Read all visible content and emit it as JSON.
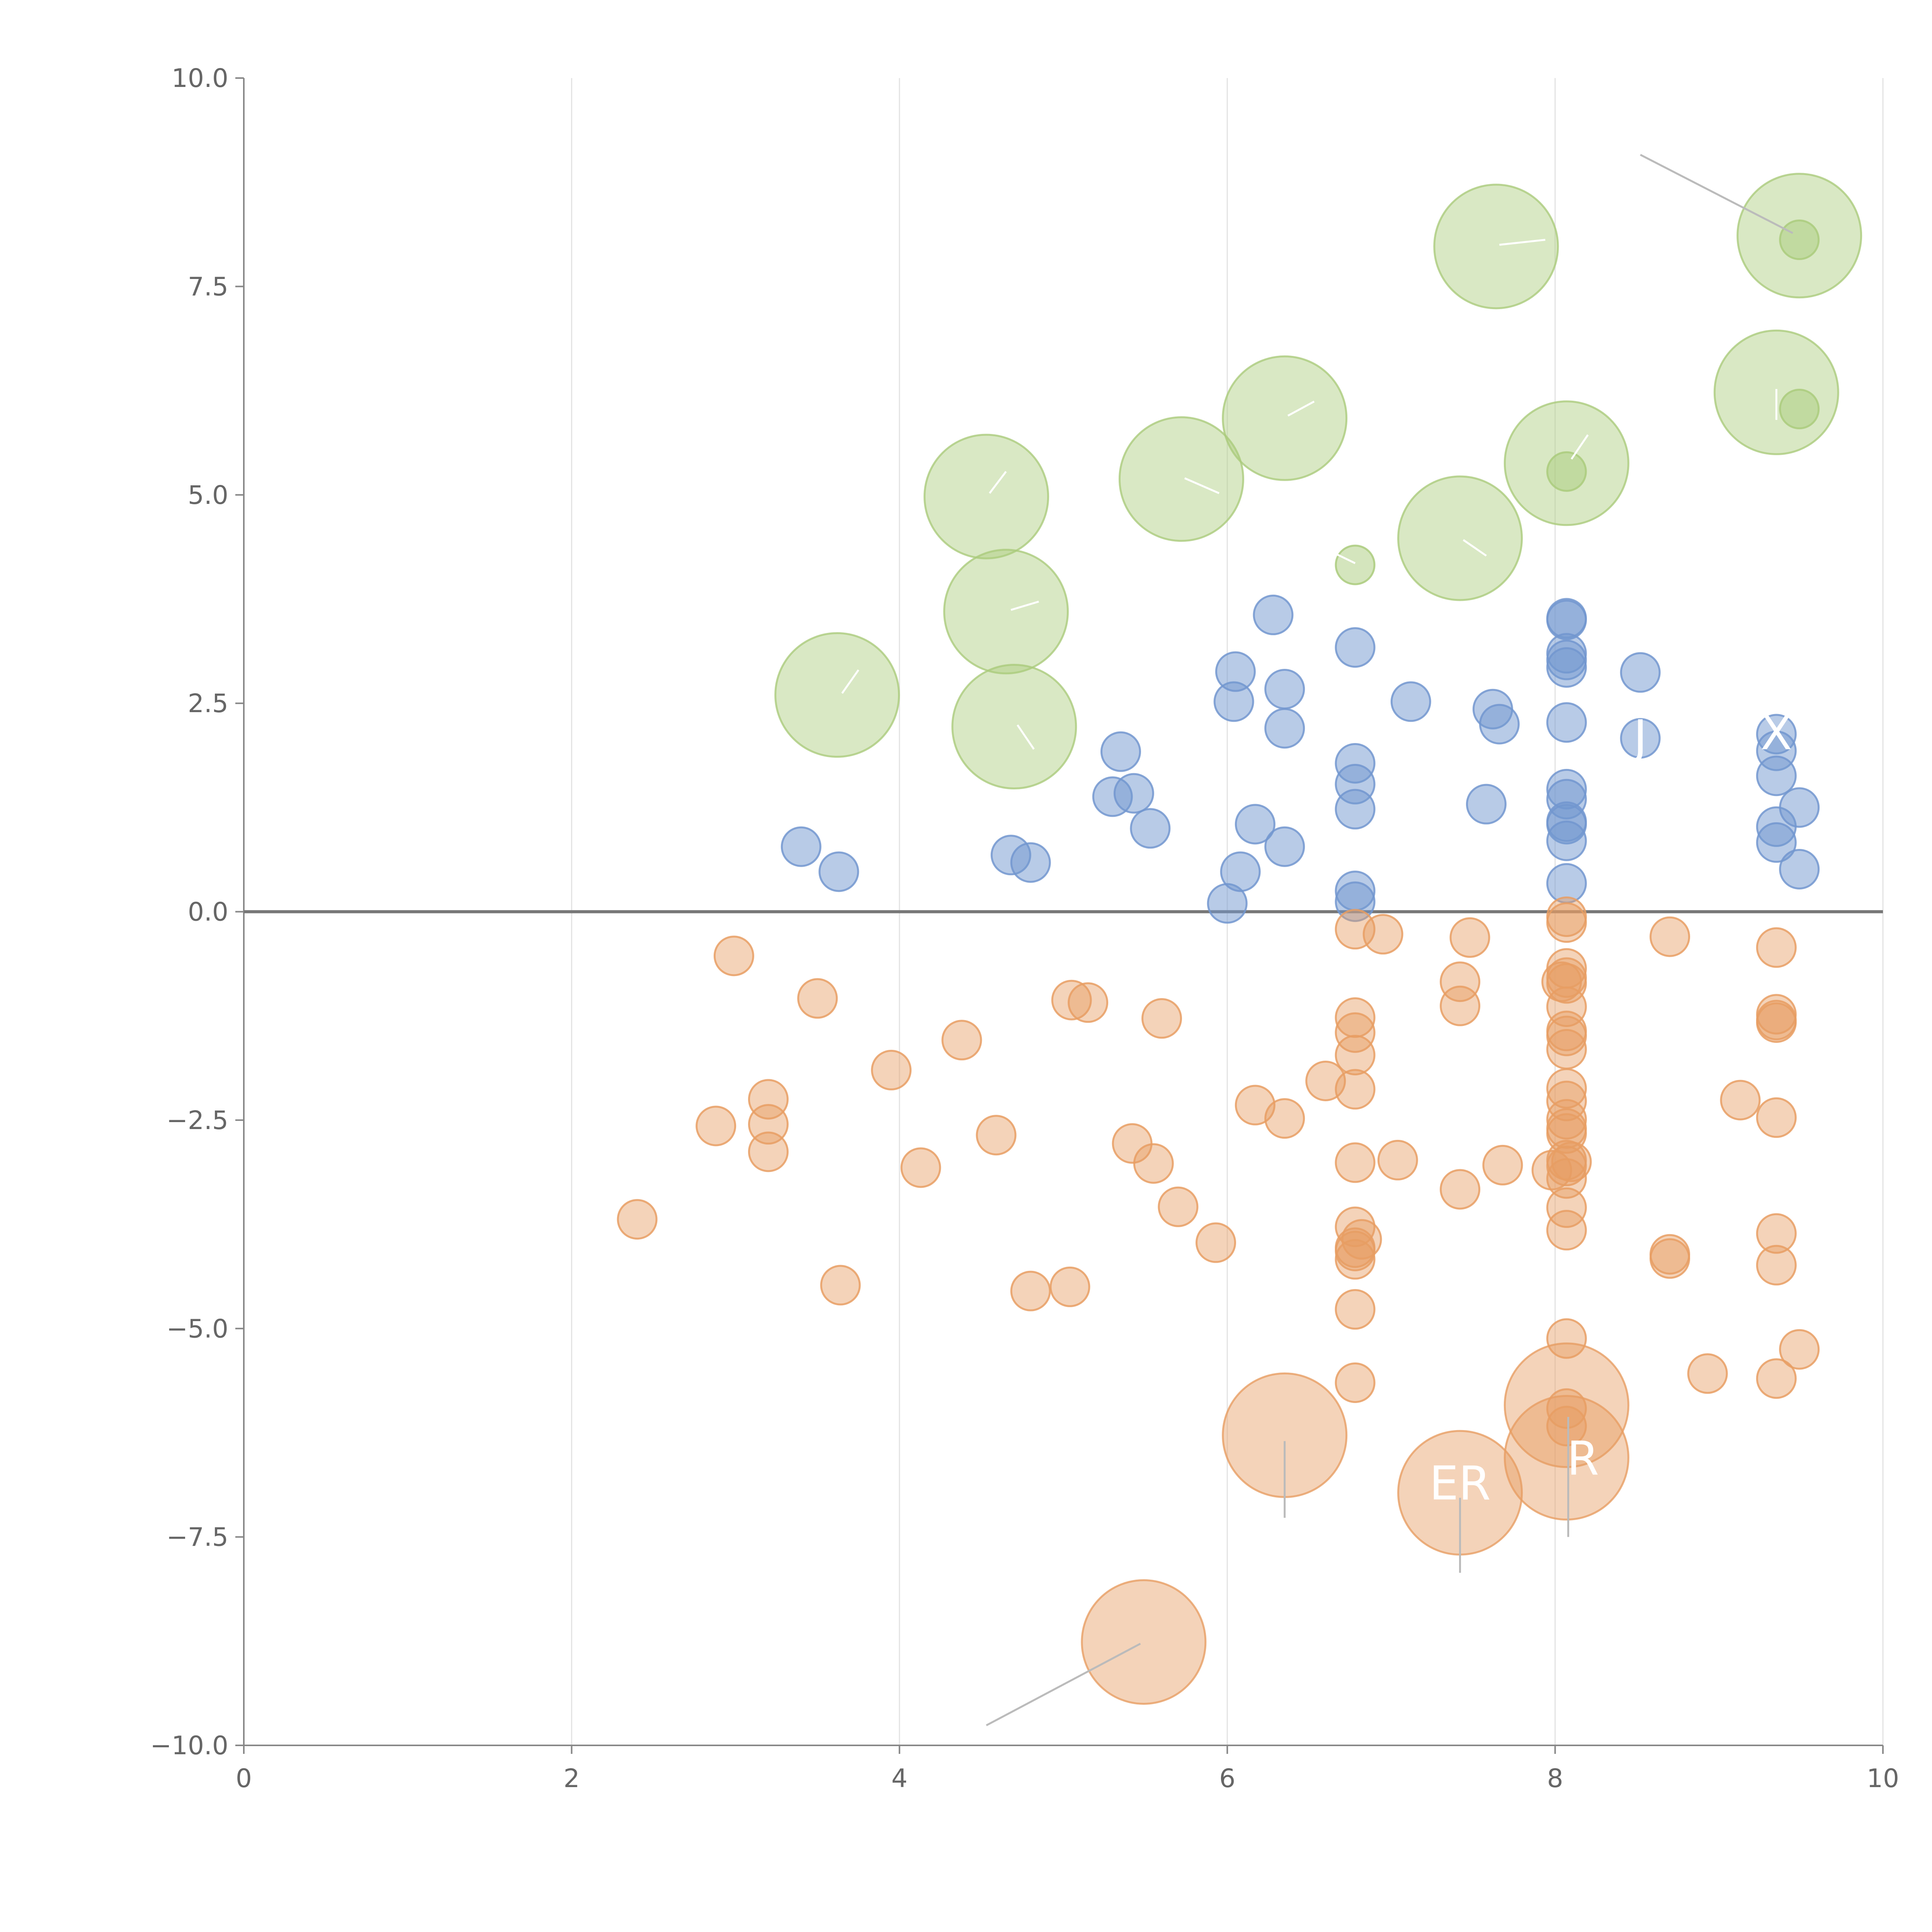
{
  "chart_data": {
    "type": "scatter",
    "title": "",
    "xlabel": "",
    "ylabel": "",
    "xlim": [
      0,
      10
    ],
    "ylim": [
      -10,
      10
    ],
    "x_ticks": [
      0,
      2,
      4,
      6,
      8,
      10
    ],
    "y_ticks": [
      -10.0,
      -7.5,
      -5.0,
      -2.5,
      0.0,
      2.5,
      5.0,
      7.5,
      10.0
    ],
    "x_tick_labels": [
      "0",
      "2",
      "4",
      "6",
      "8",
      "10"
    ],
    "y_tick_labels": [
      "−10.0",
      "−7.5",
      "−5.0",
      "−2.5",
      "0.0",
      "2.5",
      "5.0",
      "7.5",
      "10.0"
    ],
    "grid": "vertical",
    "zero_line": true,
    "colors": {
      "blue": "#7297cf",
      "orange": "#e79d63",
      "green": "#aacb7c"
    },
    "series": [
      {
        "color": "#7297cf",
        "opacity": 0.5,
        "points": [
          [
            3.4,
            0.78
          ],
          [
            3.63,
            0.48
          ],
          [
            4.68,
            0.68
          ],
          [
            4.8,
            0.59
          ],
          [
            5.3,
            1.38
          ],
          [
            5.35,
            1.92
          ],
          [
            5.43,
            1.42
          ],
          [
            5.53,
            1.0
          ],
          [
            6.0,
            0.1
          ],
          [
            6.04,
            2.52
          ],
          [
            6.05,
            2.88
          ],
          [
            6.08,
            0.48
          ],
          [
            6.17,
            1.05
          ],
          [
            6.28,
            3.56
          ],
          [
            6.35,
            2.67
          ],
          [
            6.35,
            2.2
          ],
          [
            6.35,
            0.78
          ],
          [
            6.78,
            3.17
          ],
          [
            6.78,
            1.78
          ],
          [
            6.78,
            1.53
          ],
          [
            6.78,
            1.23
          ],
          [
            6.78,
            0.25
          ],
          [
            6.78,
            0.12
          ],
          [
            7.12,
            2.52
          ],
          [
            7.58,
            1.29
          ],
          [
            7.62,
            2.43
          ],
          [
            7.66,
            2.25
          ],
          [
            8.07,
            3.52
          ],
          [
            8.07,
            3.5
          ],
          [
            8.07,
            3.1
          ],
          [
            8.07,
            3.02
          ],
          [
            8.07,
            2.93
          ],
          [
            8.07,
            2.27
          ],
          [
            8.07,
            1.47
          ],
          [
            8.07,
            1.35
          ],
          [
            8.07,
            1.08
          ],
          [
            8.07,
            1.05
          ],
          [
            8.07,
            0.85
          ],
          [
            8.07,
            0.34
          ],
          [
            8.52,
            2.87
          ],
          [
            8.52,
            2.08
          ],
          [
            9.35,
            2.13
          ],
          [
            9.35,
            1.93
          ],
          [
            9.35,
            1.63
          ],
          [
            9.35,
            1.02
          ],
          [
            9.35,
            0.83
          ],
          [
            9.49,
            1.25
          ],
          [
            9.49,
            0.51
          ]
        ]
      },
      {
        "color": "#e79d63",
        "opacity": 0.45,
        "points": [
          [
            2.4,
            -3.69
          ],
          [
            2.88,
            -2.57
          ],
          [
            2.99,
            -0.53
          ],
          [
            3.2,
            -2.25
          ],
          [
            3.2,
            -2.55
          ],
          [
            3.2,
            -2.88
          ],
          [
            3.5,
            -1.04
          ],
          [
            3.64,
            -4.48
          ],
          [
            3.95,
            -1.9
          ],
          [
            4.13,
            -3.07
          ],
          [
            4.38,
            -1.54
          ],
          [
            4.59,
            -2.68
          ],
          [
            4.8,
            -4.55
          ],
          [
            5.04,
            -4.5
          ],
          [
            5.05,
            -1.06
          ],
          [
            5.15,
            -1.09
          ],
          [
            5.42,
            -2.78
          ],
          [
            5.55,
            -3.02
          ],
          [
            5.6,
            -1.28
          ],
          [
            5.7,
            -3.54
          ],
          [
            5.93,
            -3.97
          ],
          [
            6.17,
            -2.32
          ],
          [
            6.35,
            -2.48
          ],
          [
            6.6,
            -2.03
          ],
          [
            6.78,
            -0.21
          ],
          [
            6.78,
            -1.27
          ],
          [
            6.78,
            -1.45
          ],
          [
            6.78,
            -1.72
          ],
          [
            6.78,
            -2.13
          ],
          [
            6.78,
            -3.01
          ],
          [
            6.78,
            -3.78
          ],
          [
            6.78,
            -4.03
          ],
          [
            6.78,
            -4.07
          ],
          [
            6.78,
            -4.17
          ],
          [
            6.78,
            -4.77
          ],
          [
            6.78,
            -5.65
          ],
          [
            6.82,
            -3.93
          ],
          [
            6.95,
            -0.27
          ],
          [
            7.04,
            -2.98
          ],
          [
            7.42,
            -0.84
          ],
          [
            7.42,
            -1.13
          ],
          [
            7.42,
            -3.33
          ],
          [
            7.48,
            -0.31
          ],
          [
            7.68,
            -3.04
          ],
          [
            7.98,
            -3.1
          ],
          [
            8.04,
            -0.84
          ],
          [
            8.07,
            -0.06
          ],
          [
            8.07,
            -0.13
          ],
          [
            8.07,
            -0.68
          ],
          [
            8.07,
            -0.79
          ],
          [
            8.07,
            -0.86
          ],
          [
            8.07,
            -1.14
          ],
          [
            8.07,
            -1.43
          ],
          [
            8.07,
            -1.49
          ],
          [
            8.07,
            -1.65
          ],
          [
            8.07,
            -2.12
          ],
          [
            8.07,
            -2.27
          ],
          [
            8.07,
            -2.49
          ],
          [
            8.07,
            -2.6
          ],
          [
            8.07,
            -2.66
          ],
          [
            8.07,
            -2.98
          ],
          [
            8.07,
            -3.05
          ],
          [
            8.07,
            -3.2
          ],
          [
            8.07,
            -3.55
          ],
          [
            8.07,
            -3.82
          ],
          [
            8.07,
            -5.12
          ],
          [
            8.07,
            -5.96
          ],
          [
            8.07,
            -6.17
          ],
          [
            8.1,
            -3.0
          ],
          [
            8.7,
            -0.3
          ],
          [
            8.7,
            -4.11
          ],
          [
            8.7,
            -4.16
          ],
          [
            8.93,
            -5.54
          ],
          [
            9.13,
            -2.26
          ],
          [
            9.35,
            -0.43
          ],
          [
            9.35,
            -1.23
          ],
          [
            9.35,
            -1.3
          ],
          [
            9.35,
            -1.33
          ],
          [
            9.35,
            -2.47
          ],
          [
            9.35,
            -3.86
          ],
          [
            9.35,
            -4.24
          ],
          [
            9.35,
            -5.6
          ],
          [
            9.49,
            -5.25
          ]
        ]
      },
      {
        "color": "#aacb7c",
        "opacity": 0.5,
        "points": [
          [
            6.78,
            4.16
          ],
          [
            8.07,
            5.28
          ],
          [
            9.49,
            6.03
          ],
          [
            9.49,
            8.06
          ]
        ]
      }
    ],
    "large_bubbles": [
      {
        "x": 3.62,
        "y": 2.6,
        "size": 3.2,
        "color": "#aacb7c"
      },
      {
        "x": 4.53,
        "y": 4.98,
        "size": 3.2,
        "color": "#aacb7c"
      },
      {
        "x": 4.65,
        "y": 3.6,
        "size": 3.2,
        "color": "#aacb7c"
      },
      {
        "x": 4.7,
        "y": 2.22,
        "size": 3.2,
        "color": "#aacb7c"
      },
      {
        "x": 5.72,
        "y": 5.19,
        "size": 3.2,
        "color": "#aacb7c"
      },
      {
        "x": 6.35,
        "y": 5.92,
        "size": 3.2,
        "color": "#aacb7c"
      },
      {
        "x": 7.42,
        "y": 4.48,
        "size": 3.2,
        "color": "#aacb7c"
      },
      {
        "x": 7.64,
        "y": 7.98,
        "size": 3.2,
        "color": "#aacb7c"
      },
      {
        "x": 8.07,
        "y": 5.38,
        "size": 3.2,
        "color": "#aacb7c"
      },
      {
        "x": 9.35,
        "y": 6.23,
        "size": 3.2,
        "color": "#aacb7c"
      },
      {
        "x": 9.49,
        "y": 8.11,
        "size": 3.2,
        "color": "#aacb7c"
      },
      {
        "x": 5.49,
        "y": -8.76,
        "size": 3.2,
        "color": "#e79d63"
      },
      {
        "x": 6.35,
        "y": -6.28,
        "size": 3.2,
        "color": "#e79d63"
      },
      {
        "x": 7.42,
        "y": -6.97,
        "size": 3.2,
        "color": "#e79d63"
      },
      {
        "x": 8.07,
        "y": -5.92,
        "size": 3.2,
        "color": "#e79d63"
      },
      {
        "x": 8.07,
        "y": -6.55,
        "size": 3.2,
        "color": "#e79d63"
      }
    ],
    "leader_lines": [
      {
        "from": [
          8.52,
          9.08
        ],
        "to": [
          9.45,
          8.14
        ],
        "color": "#bbbbbb"
      },
      {
        "from": [
          4.53,
          -9.76
        ],
        "to": [
          5.47,
          -8.78
        ],
        "color": "#bbbbbb"
      },
      {
        "from": [
          6.35,
          -6.35
        ],
        "to": [
          6.35,
          -7.27
        ],
        "color": "#bbbbbb"
      },
      {
        "from": [
          7.42,
          -7.03
        ],
        "to": [
          7.42,
          -7.93
        ],
        "color": "#bbbbbb"
      },
      {
        "from": [
          8.08,
          -6.06
        ],
        "to": [
          8.08,
          -7.5
        ],
        "color": "#bbbbbb"
      },
      {
        "from": [
          3.65,
          2.62
        ],
        "to": [
          3.75,
          2.9
        ],
        "color": "#ffffff"
      },
      {
        "from": [
          4.55,
          5.02
        ],
        "to": [
          4.65,
          5.28
        ],
        "color": "#ffffff"
      },
      {
        "from": [
          4.68,
          3.62
        ],
        "to": [
          4.85,
          3.72
        ],
        "color": "#ffffff"
      },
      {
        "from": [
          4.72,
          2.24
        ],
        "to": [
          4.82,
          1.95
        ],
        "color": "#ffffff"
      },
      {
        "from": [
          5.74,
          5.2
        ],
        "to": [
          5.95,
          5.02
        ],
        "color": "#ffffff"
      },
      {
        "from": [
          6.37,
          5.95
        ],
        "to": [
          6.53,
          6.12
        ],
        "color": "#ffffff"
      },
      {
        "from": [
          7.44,
          4.46
        ],
        "to": [
          7.58,
          4.27
        ],
        "color": "#ffffff"
      },
      {
        "from": [
          7.66,
          8.0
        ],
        "to": [
          7.94,
          8.06
        ],
        "color": "#ffffff"
      },
      {
        "from": [
          8.1,
          5.43
        ],
        "to": [
          8.2,
          5.72
        ],
        "color": "#ffffff"
      },
      {
        "from": [
          9.35,
          6.27
        ],
        "to": [
          9.35,
          5.9
        ],
        "color": "#ffffff"
      },
      {
        "from": [
          6.55,
          4.4
        ],
        "to": [
          6.78,
          4.18
        ],
        "color": "#ffffff"
      }
    ],
    "labels": [
      {
        "x": 7.42,
        "y": -7.05,
        "text": "ER"
      },
      {
        "x": 8.17,
        "y": -6.75,
        "text": "R"
      },
      {
        "x": 9.35,
        "y": 1.95,
        "text": "X"
      },
      {
        "x": 8.52,
        "y": 1.9,
        "text": "J"
      }
    ]
  }
}
